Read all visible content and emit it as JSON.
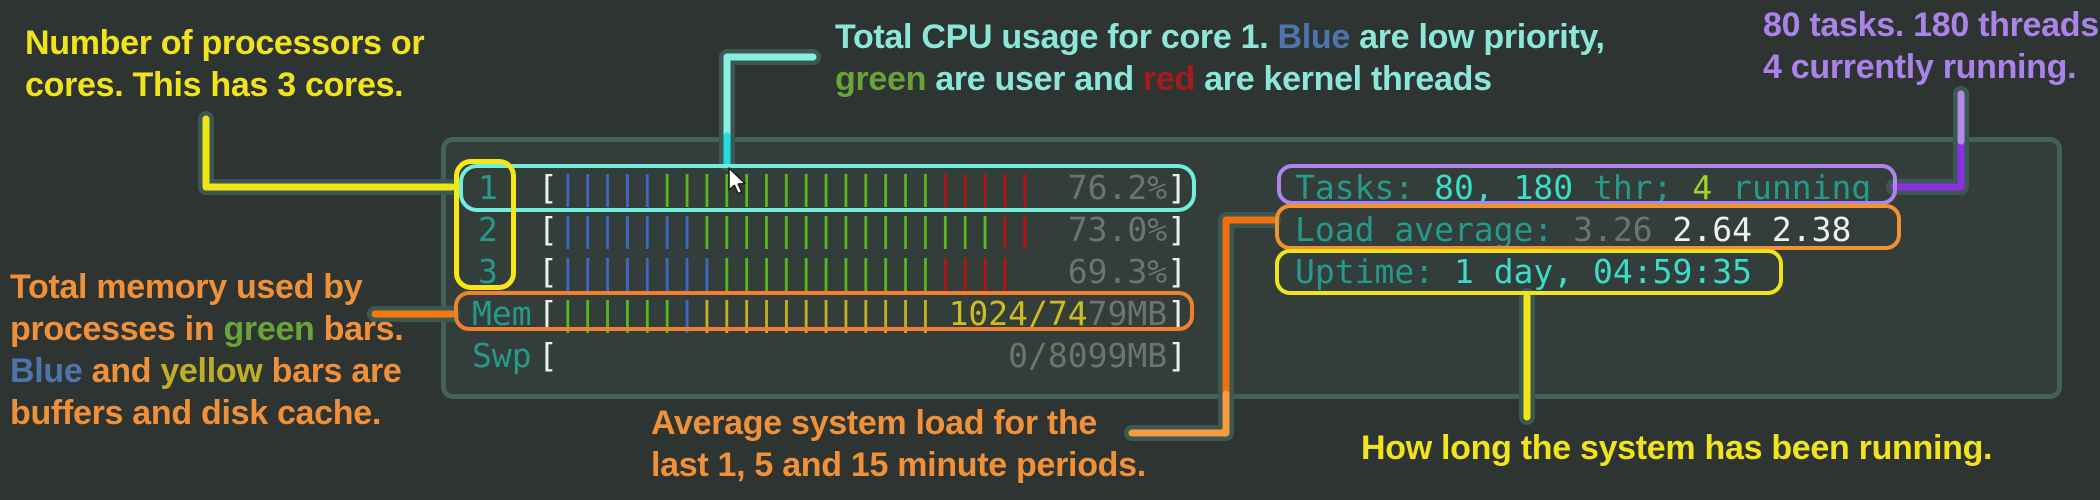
{
  "colors": {
    "background": "#2d3431",
    "panel_background": "#333d3a",
    "panel_border": "#40625b",
    "connector_casing": "#3b5852",
    "annotation_yellow": "#f2e41c",
    "annotation_orange": "#f0913a",
    "annotation_teal": "#8ce6da",
    "annotation_purple": "#ab82e8",
    "box_cyan": "#72eedd",
    "box_yellow": "#f5e718",
    "box_orange_mem": "#f08030",
    "box_purple": "#b184ec",
    "box_orange_load": "#f0922e",
    "bar_blue": "#3d68c5",
    "bar_green": "#58b81c",
    "bar_red": "#b51414",
    "bar_yellow": "#c3b220",
    "htop_label_teal": "#27988c",
    "htop_cyan_bright": "#3bdcca",
    "htop_gray": "#6c7470",
    "htop_white": "#edf0ee"
  },
  "annotations": {
    "cores": {
      "lines": [
        [
          {
            "t": "Number of processors or",
            "c": "yellow"
          }
        ],
        [
          {
            "t": "cores. This has 3 cores.",
            "c": "yellow"
          }
        ]
      ]
    },
    "cpu": {
      "lines": [
        [
          {
            "t": "Total CPU usage for core 1. ",
            "c": "tealText"
          },
          {
            "t": "Blue",
            "c": "blueWord"
          },
          {
            "t": " are low priority,",
            "c": "tealText"
          }
        ],
        [
          {
            "t": "green",
            "c": "greenWord"
          },
          {
            "t": " are user and ",
            "c": "tealText"
          },
          {
            "t": "red",
            "c": "redWord"
          },
          {
            "t": " are kernel threads",
            "c": "tealText"
          }
        ]
      ]
    },
    "tasks": {
      "lines": [
        [
          {
            "t": "80 tasks. 180 threads.",
            "c": "purple"
          }
        ],
        [
          {
            "t": "4 currently running.",
            "c": "purple"
          }
        ]
      ]
    },
    "mem": {
      "lines": [
        [
          {
            "t": "Total memory used by",
            "c": "orange"
          }
        ],
        [
          {
            "t": "processes in ",
            "c": "orange"
          },
          {
            "t": "green",
            "c": "greenWord"
          },
          {
            "t": " bars.",
            "c": "orange"
          }
        ],
        [
          {
            "t": "Blue",
            "c": "blueWord"
          },
          {
            "t": " and ",
            "c": "orange"
          },
          {
            "t": "yellow",
            "c": "oliveWord"
          },
          {
            "t": " bars are",
            "c": "orange"
          }
        ],
        [
          {
            "t": "buffers  and disk cache.",
            "c": "orange"
          }
        ]
      ]
    },
    "load": {
      "lines": [
        [
          {
            "t": "Average system load for the",
            "c": "orange"
          }
        ],
        [
          {
            "t": "last 1, 5 and 15 minute periods.",
            "c": "orange"
          }
        ]
      ]
    },
    "uptime": {
      "lines": [
        [
          {
            "t": "How long the system has been running.",
            "c": "yellow"
          }
        ]
      ]
    }
  },
  "monitor": {
    "cpu_rows": [
      {
        "label": "1",
        "bars": [
          [
            "blue",
            5
          ],
          [
            "green",
            14
          ],
          [
            "red",
            5
          ]
        ],
        "value": [
          {
            "t": "76.2%",
            "c": "gray"
          },
          {
            "t": "]",
            "c": "white"
          }
        ]
      },
      {
        "label": "2",
        "bars": [
          [
            "blue",
            7
          ],
          [
            "green",
            15
          ],
          [
            "red",
            2
          ]
        ],
        "value": [
          {
            "t": "73.0%",
            "c": "gray"
          },
          {
            "t": "]",
            "c": "white"
          }
        ]
      },
      {
        "label": "3",
        "bars": [
          [
            "blue",
            8
          ],
          [
            "green",
            11
          ],
          [
            "red",
            4
          ]
        ],
        "value": [
          {
            "t": "69.3%",
            "c": "gray"
          },
          {
            "t": "]",
            "c": "white"
          }
        ]
      }
    ],
    "mem_row": {
      "label": "Mem",
      "bars": [
        [
          "green",
          6
        ],
        [
          "blue",
          1
        ],
        [
          "yellow",
          12
        ]
      ],
      "value": [
        {
          "t": "1024/74",
          "c": "olive"
        },
        {
          "t": "79MB",
          "c": "gray"
        },
        {
          "t": "]",
          "c": "white"
        }
      ]
    },
    "swp_row": {
      "label": "Swp",
      "bars": [],
      "value": [
        {
          "t": "0/8099MB",
          "c": "gray"
        },
        {
          "t": "]",
          "c": "white"
        }
      ]
    },
    "stats": {
      "tasks": [
        {
          "t": "Tasks: ",
          "c": "teal"
        },
        {
          "t": "80, 180",
          "c": "cyanBright"
        },
        {
          "t": " thr; ",
          "c": "teal"
        },
        {
          "t": "4",
          "c": "greenText"
        },
        {
          "t": " running",
          "c": "teal"
        }
      ],
      "load": [
        {
          "t": "Load average: ",
          "c": "teal"
        },
        {
          "t": "3.26 ",
          "c": "gray"
        },
        {
          "t": "2.64 2.38",
          "c": "white"
        }
      ],
      "uptime": [
        {
          "t": "Uptime: ",
          "c": "teal"
        },
        {
          "t": "1 day, 04:59:35",
          "c": "cyanBright"
        }
      ]
    }
  }
}
